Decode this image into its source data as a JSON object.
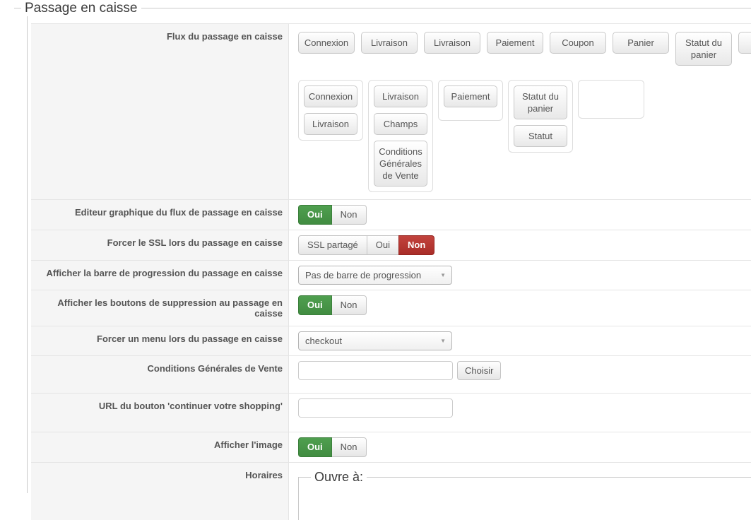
{
  "legend": "Passage en caisse",
  "colors": {
    "selected_green": "#469446",
    "selected_red": "#b53530",
    "key_background": "#f5f5f5"
  },
  "rows": [
    {
      "label": "Flux du passage en caisse",
      "flow": {
        "top_buttons": [
          "Connexion",
          "Livraison",
          "Livraison",
          "Paiement",
          "Coupon",
          "Panier",
          "Statut du panier",
          ""
        ],
        "groups": [
          {
            "buttons": [
              "Connexion",
              "Livraison"
            ]
          },
          {
            "buttons": [
              "Livraison",
              "Champs",
              "Conditions Générales de Vente"
            ]
          },
          {
            "buttons": [
              "Paiement"
            ]
          },
          {
            "buttons": [
              "Statut du panier",
              "Statut"
            ]
          },
          {
            "buttons": []
          }
        ]
      }
    },
    {
      "label": "Editeur graphique du flux de passage en caisse",
      "toggle": {
        "options": [
          "Oui",
          "Non"
        ],
        "selected": "Oui"
      }
    },
    {
      "label": "Forcer le SSL lors du passage en caisse",
      "toggle": {
        "options": [
          "SSL partagé",
          "Oui",
          "Non"
        ],
        "selected": "Non"
      }
    },
    {
      "label": "Afficher la barre de progression du passage en caisse",
      "dropdown": {
        "value": "Pas de barre de progression"
      }
    },
    {
      "label": "Afficher les boutons de suppression au passage en caisse",
      "toggle": {
        "options": [
          "Oui",
          "Non"
        ],
        "selected": "Oui"
      }
    },
    {
      "label": "Forcer un menu lors du passage en caisse",
      "dropdown": {
        "value": "checkout"
      }
    },
    {
      "label": "Conditions Générales de Vente",
      "input": {
        "value": ""
      },
      "button": "Choisir"
    },
    {
      "label": "URL du bouton 'continuer votre shopping'",
      "input": {
        "value": ""
      }
    },
    {
      "label": "Afficher l'image",
      "toggle": {
        "options": [
          "Oui",
          "Non"
        ],
        "selected": "Oui"
      }
    },
    {
      "label": "Horaires",
      "fieldset_legend": "Ouvre à:"
    }
  ]
}
